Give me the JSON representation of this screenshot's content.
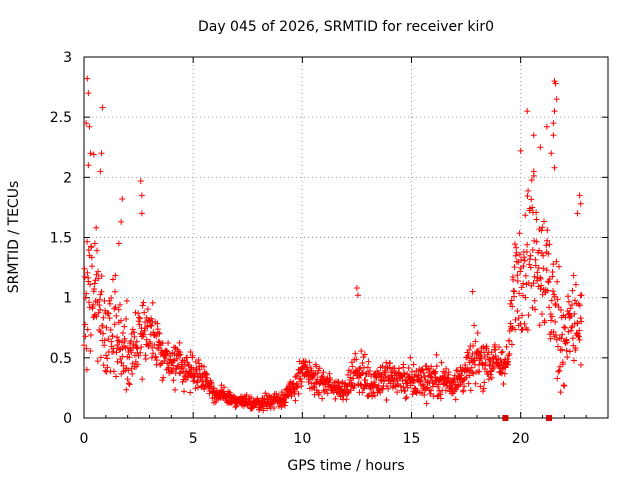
{
  "chart_data": {
    "type": "scatter",
    "title": "Day 045 of 2026, SRMTID for receiver kir0",
    "xlabel": "GPS time / hours",
    "ylabel": "SRMTID / TECUs",
    "xlim": [
      0,
      24
    ],
    "ylim": [
      0,
      3
    ],
    "xticks": [
      0,
      5,
      10,
      15,
      20
    ],
    "yticks": [
      0,
      0.5,
      1,
      1.5,
      2,
      2.5,
      3
    ],
    "xtick_labels": [
      "0",
      "5",
      "10",
      "15",
      "20"
    ],
    "ytick_labels": [
      "0",
      "0.5",
      "1",
      "1.5",
      "2",
      "2.5",
      "3"
    ],
    "grid": true,
    "marker": "+",
    "color": "#ff0000",
    "series": [
      {
        "name": "SRMTID",
        "envelope": [
          {
            "t": 0.0,
            "y": 0.95,
            "s": 0.45
          },
          {
            "t": 0.5,
            "y": 1.1,
            "s": 0.5
          },
          {
            "t": 1.0,
            "y": 0.7,
            "s": 0.35
          },
          {
            "t": 1.5,
            "y": 0.75,
            "s": 0.35
          },
          {
            "t": 2.0,
            "y": 0.5,
            "s": 0.3
          },
          {
            "t": 2.5,
            "y": 0.65,
            "s": 0.3
          },
          {
            "t": 3.0,
            "y": 0.75,
            "s": 0.25
          },
          {
            "t": 3.5,
            "y": 0.55,
            "s": 0.15
          },
          {
            "t": 4.0,
            "y": 0.45,
            "s": 0.15
          },
          {
            "t": 4.5,
            "y": 0.42,
            "s": 0.14
          },
          {
            "t": 5.0,
            "y": 0.38,
            "s": 0.12
          },
          {
            "t": 5.5,
            "y": 0.35,
            "s": 0.1
          },
          {
            "t": 6.0,
            "y": 0.2,
            "s": 0.06
          },
          {
            "t": 7.0,
            "y": 0.14,
            "s": 0.05
          },
          {
            "t": 8.0,
            "y": 0.12,
            "s": 0.05
          },
          {
            "t": 9.0,
            "y": 0.16,
            "s": 0.06
          },
          {
            "t": 9.5,
            "y": 0.22,
            "s": 0.07
          },
          {
            "t": 10.0,
            "y": 0.38,
            "s": 0.14
          },
          {
            "t": 11.0,
            "y": 0.28,
            "s": 0.1
          },
          {
            "t": 12.0,
            "y": 0.24,
            "s": 0.06
          },
          {
            "t": 12.5,
            "y": 0.4,
            "s": 0.2
          },
          {
            "t": 13.0,
            "y": 0.3,
            "s": 0.15
          },
          {
            "t": 14.0,
            "y": 0.35,
            "s": 0.14
          },
          {
            "t": 15.0,
            "y": 0.3,
            "s": 0.14
          },
          {
            "t": 16.0,
            "y": 0.33,
            "s": 0.14
          },
          {
            "t": 17.0,
            "y": 0.3,
            "s": 0.13
          },
          {
            "t": 17.5,
            "y": 0.38,
            "s": 0.15
          },
          {
            "t": 18.0,
            "y": 0.5,
            "s": 0.2
          },
          {
            "t": 19.0,
            "y": 0.45,
            "s": 0.15
          },
          {
            "t": 19.4,
            "y": 0.45,
            "s": 0.12
          },
          {
            "t": 19.8,
            "y": 1.2,
            "s": 0.45
          },
          {
            "t": 20.5,
            "y": 1.45,
            "s": 0.55
          },
          {
            "t": 21.0,
            "y": 1.3,
            "s": 0.5
          },
          {
            "t": 21.5,
            "y": 0.9,
            "s": 0.5
          },
          {
            "t": 22.0,
            "y": 0.65,
            "s": 0.4
          },
          {
            "t": 22.5,
            "y": 0.85,
            "s": 0.4
          },
          {
            "t": 22.8,
            "y": 0.7,
            "s": 0.35
          }
        ],
        "outliers": [
          [
            0.15,
            2.82
          ],
          [
            0.2,
            2.7
          ],
          [
            0.1,
            2.45
          ],
          [
            0.25,
            2.42
          ],
          [
            0.85,
            2.58
          ],
          [
            0.8,
            2.2
          ],
          [
            0.3,
            2.2
          ],
          [
            0.45,
            2.19
          ],
          [
            0.75,
            2.05
          ],
          [
            0.2,
            2.1
          ],
          [
            1.75,
            1.82
          ],
          [
            2.6,
            1.97
          ],
          [
            2.65,
            1.85
          ],
          [
            1.7,
            1.63
          ],
          [
            2.65,
            1.7
          ],
          [
            1.6,
            1.45
          ],
          [
            0.5,
            1.45
          ],
          [
            12.5,
            1.08
          ],
          [
            12.55,
            1.02
          ],
          [
            17.8,
            1.05
          ],
          [
            20.3,
            2.55
          ],
          [
            21.55,
            2.8
          ],
          [
            21.6,
            2.78
          ],
          [
            21.65,
            2.65
          ],
          [
            21.55,
            2.55
          ],
          [
            21.5,
            2.45
          ],
          [
            21.5,
            2.35
          ],
          [
            21.2,
            2.42
          ],
          [
            20.6,
            2.35
          ],
          [
            20.9,
            2.25
          ],
          [
            20.0,
            2.22
          ],
          [
            21.4,
            2.2
          ],
          [
            21.55,
            2.08
          ],
          [
            20.6,
            2.05
          ],
          [
            22.7,
            1.85
          ],
          [
            22.75,
            1.78
          ],
          [
            22.6,
            1.7
          ]
        ],
        "squares": [
          [
            19.3,
            0.0
          ],
          [
            21.3,
            0.0
          ]
        ]
      }
    ]
  }
}
